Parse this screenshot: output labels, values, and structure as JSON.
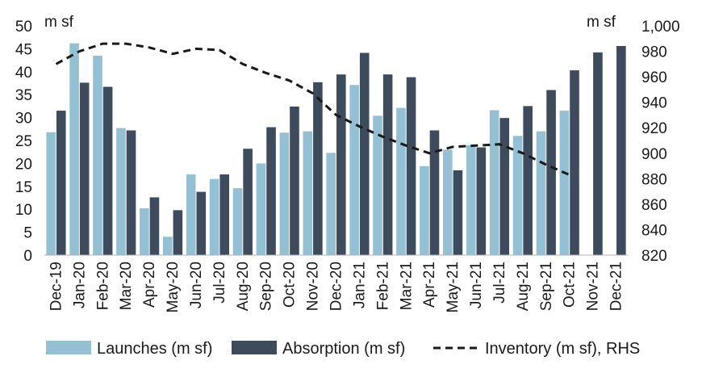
{
  "chart_data": {
    "type": "bar",
    "left_axis_unit": "m sf",
    "right_axis_unit": "m sf",
    "categories": [
      "Dec-19",
      "Jan-20",
      "Feb-20",
      "Mar-20",
      "Apr-20",
      "May-20",
      "Jun-20",
      "Jul-20",
      "Aug-20",
      "Sep-20",
      "Oct-20",
      "Nov-20",
      "Dec-20",
      "Jan-21",
      "Feb-21",
      "Mar-21",
      "Apr-21",
      "May-21",
      "Jun-21",
      "Jul-21",
      "Aug-21",
      "Sep-21",
      "Oct-21",
      "Nov-21",
      "Dec-21"
    ],
    "y_left": {
      "min": 0,
      "max": 50,
      "ticks": [
        "0",
        "5",
        "10",
        "15",
        "20",
        "25",
        "30",
        "35",
        "40",
        "45",
        "50"
      ]
    },
    "y_right": {
      "min": 820,
      "max": 1000,
      "ticks": [
        "820",
        "840",
        "860",
        "880",
        "900",
        "920",
        "940",
        "960",
        "980",
        "1,000"
      ]
    },
    "series": [
      {
        "name": "Launches (m sf)",
        "kind": "bar",
        "color": "#93c1d3",
        "values": [
          26.8,
          46.2,
          43.5,
          27.7,
          10.2,
          4.0,
          17.6,
          16.6,
          14.6,
          20.0,
          26.7,
          27.0,
          22.3,
          37.1,
          30.4,
          32.1,
          19.4,
          23.0,
          24.0,
          31.6,
          26.0,
          27.0,
          31.5,
          null,
          null
        ]
      },
      {
        "name": "Absorption (m sf)",
        "kind": "bar",
        "color": "#3d4b5c",
        "values": [
          31.5,
          37.6,
          36.7,
          27.2,
          12.6,
          9.8,
          13.8,
          17.6,
          23.2,
          27.9,
          32.4,
          37.7,
          39.4,
          44.1,
          39.4,
          38.8,
          27.2,
          18.5,
          23.5,
          29.9,
          32.5,
          36.0,
          40.3,
          44.2,
          45.6
        ]
      },
      {
        "name": "Inventory (m sf), RHS",
        "kind": "line",
        "axis": "right",
        "style": "dashed",
        "color": "#1a1a1a",
        "values": [
          970,
          980,
          986,
          986,
          983,
          978,
          982,
          981,
          970,
          963,
          957,
          947,
          930,
          921,
          913,
          906,
          900,
          905,
          906,
          907,
          900,
          891,
          883,
          null,
          null
        ]
      }
    ],
    "legend": {
      "position": "bottom"
    },
    "grid": false
  }
}
